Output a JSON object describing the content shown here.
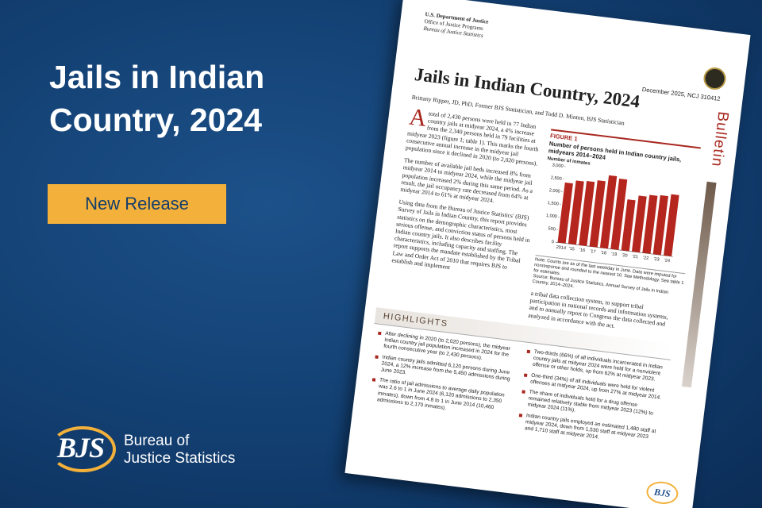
{
  "banner": {
    "title": "Jails in Indian Country, 2024",
    "button": "New Release",
    "logo": {
      "mark": "BJS",
      "line1": "Bureau of",
      "line2": "Justice Statistics"
    }
  },
  "document": {
    "header": {
      "agency": "U.S. Department of Justice",
      "office": "Office of Justice Programs",
      "bureau": "Bureau of Justice Statistics",
      "date": "December 2025, NCJ 310412",
      "series": "Bulletin"
    },
    "title": "Jails in Indian Country, 2024",
    "authors": "Brittany Ripper, JD, PhD, Former BJS Statistician, and Todd D. Minton, BJS Statistician",
    "paragraphs": [
      "A total of 2,430 persons were held in 77 Indian country jails at midyear 2024, a 4% increase from the 2,340 persons held in 79 facilities at midyear 2023 (figure 1; table 1). This marks the fourth consecutive annual increase in the midyear jail population since it declined in 2020 (to 2,020 persons).",
      "The number of available jail beds increased 8% from midyear 2014 to midyear 2024, while the midyear jail population increased 2% during this same period. As a result, the jail occupancy rate decreased from 64% at midyear 2014 to 61% at midyear 2024.",
      "Using data from the Bureau of Justice Statistics' (BJS) Survey of Jails in Indian Country, this report provides statistics on the demographic characteristics, most serious offense, and conviction status of persons held in Indian country jails. It also describes facility characteristics, including capacity and staffing. The report supports the mandate established by the Tribal Law and Order Act of 2010 that requires BJS to establish and implement",
      "a tribal data collection system, to support tribal participation in national records and information systems, and to annually report to Congress the data collected and analyzed in accordance with the act."
    ],
    "figure": {
      "label": "FIGURE 1",
      "note": "Note: Counts are as of the last weekday in June. Data were imputed for nonresponse and rounded to the nearest 10. See Methodology. See table 1 for estimates.",
      "source": "Source: Bureau of Justice Statistics, Annual Survey of Jails in Indian Country, 2014–2024.",
      "chart_data": {
        "type": "bar",
        "title": "Number of persons held in Indian country jails, midyears 2014–2024",
        "y_label": "Number of inmates",
        "categories": [
          "2014",
          "'15",
          "'16",
          "'17",
          "'18",
          "'19",
          "'20",
          "'21",
          "'22",
          "'23",
          "'24"
        ],
        "values": [
          2380,
          2510,
          2540,
          2620,
          2870,
          2790,
          2020,
          2220,
          2300,
          2340,
          2430
        ],
        "color": "#b5261e",
        "ylim": [
          0,
          3000
        ],
        "yticks": [
          0,
          500,
          {
            "value": 1000,
            "label": "1,000"
          },
          {
            "value": 1500,
            "label": "1,500"
          },
          {
            "value": 2000,
            "label": "2,000"
          },
          {
            "value": 2500,
            "label": "2,500"
          },
          {
            "value": 3000,
            "label": "3,000"
          }
        ],
        "grid": false
      }
    },
    "highlights": {
      "heading": "HIGHLIGHTS",
      "left": [
        "After declining in 2020 (to 2,020 persons), the midyear Indian country jail population increased in 2024 for the fourth consecutive year (to 2,430 persons).",
        "Indian country jails admitted 6,120 persons during June 2024, a 12% increase from the 5,450 admissions during June 2023.",
        "The ratio of jail admissions to average daily population was 2.6 to 1 in June 2024 (6,120 admissions to 2,350 inmates), down from 4.8 to 1 in June 2014 (10,460 admissions to 2,170 inmates)."
      ],
      "right": [
        "Two-thirds (66%) of all individuals incarcerated in Indian country jails at midyear 2024 were held for a nonviolent offense or other holds, up from 62% at midyear 2023.",
        "One-third (34%) of all individuals were held for violent offenses at midyear 2024, up from 27% at midyear 2014.",
        "The share of individuals held for a drug offense remained relatively stable from midyear 2023 (12%) to midyear 2024 (11%).",
        "Indian country jails employed an estimated 1,480 staff at midyear 2024, down from 1,530 staff at midyear 2023 and 1,710 staff at midyear 2014."
      ]
    },
    "footer_logo": "BJS"
  }
}
